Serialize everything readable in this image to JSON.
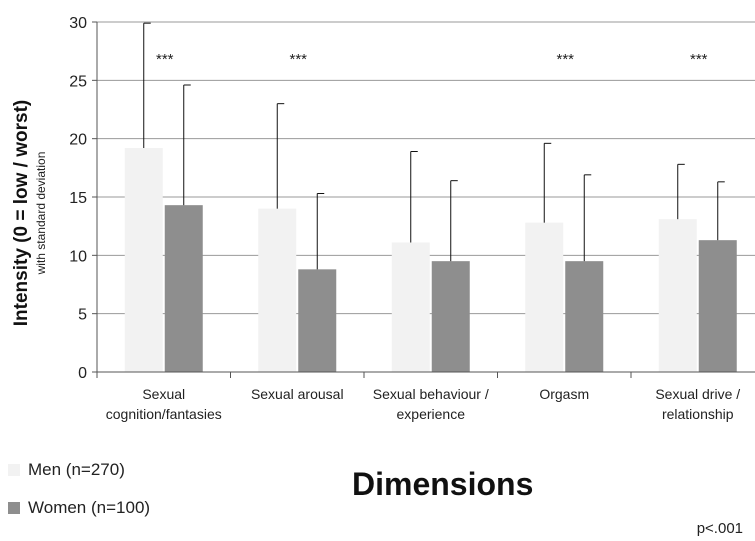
{
  "chart_data": {
    "type": "bar",
    "categories": [
      [
        "Sexual",
        "cognition/fantasies"
      ],
      [
        "Sexual arousal"
      ],
      [
        "Sexual behaviour /",
        "experience"
      ],
      [
        "Orgasm"
      ],
      [
        "Sexual drive /",
        "relationship"
      ]
    ],
    "series": [
      {
        "name": "Men (n=270)",
        "color": "#f2f2f2",
        "values": [
          19.2,
          14.0,
          11.1,
          12.8,
          13.1
        ],
        "error_upper": [
          29.9,
          23.0,
          18.9,
          19.6,
          17.8
        ]
      },
      {
        "name": "Women (n=100)",
        "color": "#8e8e8e",
        "values": [
          14.3,
          8.8,
          9.5,
          9.5,
          11.3
        ],
        "error_upper": [
          24.6,
          15.3,
          16.4,
          16.9,
          16.3
        ]
      }
    ],
    "significance": [
      "***",
      "***",
      "",
      "***",
      "***"
    ],
    "ylabel": "Intensity  (0 = low / worst)",
    "ylabel_sub": "with standard deviation",
    "xlabel": "Dimensions",
    "ylim": [
      0,
      30
    ],
    "yticks": [
      0,
      5,
      10,
      15,
      20,
      25,
      30
    ],
    "grid": true,
    "legend_position": "bottom-left",
    "note": "p<.001"
  }
}
